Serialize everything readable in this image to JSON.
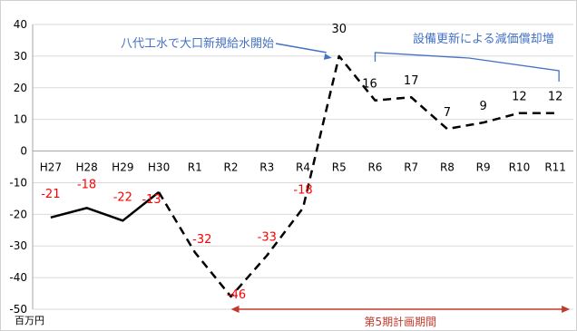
{
  "chart_data": {
    "type": "line",
    "categories": [
      "H27",
      "H28",
      "H29",
      "H30",
      "R1",
      "R2",
      "R3",
      "R4",
      "R5",
      "R6",
      "R7",
      "R8",
      "R9",
      "R10",
      "R11"
    ],
    "series": [
      {
        "values": [
          -21,
          -18,
          -22,
          -13,
          -32,
          -46,
          -33,
          -18,
          30,
          16,
          17,
          7,
          9,
          12,
          12
        ],
        "solid_through_index": 3,
        "color": "#000000"
      }
    ],
    "data_labels": [
      "-21",
      "-18",
      "-22",
      "-13",
      "-32",
      "-46",
      "-33",
      "-18",
      "30",
      "16",
      "17",
      "7",
      "9",
      "12",
      "12"
    ],
    "negative_label_color": "#ff0000",
    "positive_label_color": "#000000",
    "ylim": [
      -50,
      40
    ],
    "yticks": [
      40,
      30,
      20,
      10,
      0,
      -10,
      -20,
      -30,
      -40,
      -50
    ],
    "y_unit": "百万円",
    "grid": true,
    "annotations": {
      "arrow_label": "八代工水で大口新規給水開始",
      "arrow_target_category": "R5",
      "bracket_label": "設備更新による減価償却増",
      "bracket_from": "R6",
      "bracket_to": "R11",
      "period_label": "第5期計画期間",
      "period_from": "R2",
      "period_to": "R11",
      "annotation_color": "#4472c4",
      "period_color": "#c0392b"
    }
  }
}
